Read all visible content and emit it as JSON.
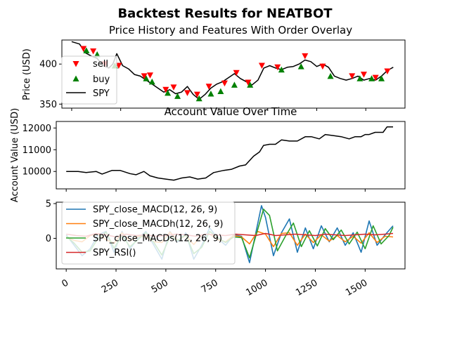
{
  "figure": {
    "suptitle": "Backtest Results for NEATBOT"
  },
  "chart_data": [
    {
      "type": "line",
      "title": "Price History and Features With Order Overlay",
      "ylabel": "Price (USD)",
      "xlabel": "",
      "xlim": [
        -50,
        1700
      ],
      "ylim": [
        345,
        430
      ],
      "yticks": [
        350,
        400
      ],
      "grid": false,
      "legend_position": "upper-left",
      "legend": [
        "sell",
        "buy",
        "SPY"
      ],
      "series": [
        {
          "name": "SPY",
          "color": "#000000",
          "x": [
            0,
            40,
            70,
            100,
            130,
            160,
            190,
            210,
            230,
            260,
            290,
            320,
            350,
            380,
            410,
            440,
            470,
            500,
            530,
            560,
            590,
            620,
            650,
            680,
            710,
            740,
            770,
            800,
            830,
            860,
            890,
            920,
            950,
            980,
            1010,
            1040,
            1070,
            1100,
            1130,
            1160,
            1190,
            1220,
            1250,
            1280,
            1310,
            1340,
            1370,
            1400,
            1430,
            1460,
            1490,
            1520,
            1550,
            1580,
            1610,
            1640
          ],
          "values": [
            428,
            425,
            414,
            410,
            407,
            398,
            395,
            400,
            413,
            398,
            394,
            387,
            385,
            380,
            375,
            370,
            365,
            368,
            363,
            365,
            372,
            362,
            356,
            362,
            370,
            375,
            378,
            383,
            388,
            382,
            378,
            374,
            380,
            395,
            398,
            395,
            393,
            396,
            397,
            400,
            405,
            403,
            397,
            400,
            396,
            385,
            382,
            380,
            382,
            385,
            380,
            382,
            380,
            385,
            392,
            396
          ]
        }
      ],
      "markers": {
        "sell": {
          "color": "#ff0000",
          "x": [
            60,
            110,
            170,
            240,
            370,
            400,
            480,
            520,
            590,
            640,
            700,
            780,
            840,
            900,
            970,
            1050,
            1190,
            1280,
            1430,
            1490,
            1550,
            1610
          ],
          "values": [
            419,
            416,
            400,
            398,
            385,
            386,
            368,
            371,
            364,
            362,
            372,
            376,
            389,
            377,
            398,
            396,
            410,
            397,
            385,
            387,
            383,
            391
          ]
        },
        "buy": {
          "color": "#008000",
          "x": [
            75,
            130,
            220,
            380,
            410,
            490,
            540,
            650,
            710,
            760,
            830,
            910,
            1070,
            1170,
            1320,
            1470,
            1530,
            1580
          ],
          "values": [
            417,
            412,
            398,
            382,
            378,
            364,
            360,
            357,
            363,
            366,
            374,
            374,
            393,
            397,
            385,
            382,
            382,
            382
          ]
        }
      }
    },
    {
      "type": "line",
      "title": "Account Value Over Time",
      "ylabel": "Account Value (USD)",
      "xlabel": "",
      "xlim": [
        -50,
        1700
      ],
      "ylim": [
        9200,
        12300
      ],
      "yticks": [
        10000,
        11000,
        12000
      ],
      "grid": false,
      "series": [
        {
          "name": "",
          "color": "#000000",
          "x": [
            0,
            60,
            100,
            150,
            180,
            230,
            270,
            320,
            350,
            390,
            420,
            460,
            500,
            540,
            580,
            620,
            660,
            700,
            740,
            790,
            830,
            870,
            900,
            940,
            970,
            990,
            1020,
            1050,
            1080,
            1120,
            1160,
            1200,
            1230,
            1270,
            1300,
            1340,
            1380,
            1420,
            1450,
            1480,
            1500,
            1520,
            1550,
            1590,
            1610,
            1640
          ],
          "values": [
            10000,
            10000,
            9950,
            10000,
            9880,
            10050,
            10050,
            9900,
            9850,
            10000,
            9800,
            9700,
            9650,
            9600,
            9700,
            9750,
            9650,
            9700,
            9950,
            10050,
            10100,
            10250,
            10300,
            10700,
            10900,
            11200,
            11250,
            11250,
            11450,
            11400,
            11400,
            11600,
            11600,
            11500,
            11700,
            11650,
            11600,
            11500,
            11600,
            11600,
            11700,
            11700,
            11800,
            11800,
            12050,
            12050
          ]
        }
      ]
    },
    {
      "type": "line",
      "title": "",
      "ylabel": "",
      "xlabel": "",
      "xlim": [
        -50,
        1700
      ],
      "ylim": [
        -4.4,
        5.2
      ],
      "yticks": [
        0,
        5
      ],
      "xticks": [
        0,
        250,
        500,
        750,
        1000,
        1250,
        1500
      ],
      "xtick_labels": [
        "0",
        "250",
        "500",
        "750",
        "1000",
        "1250",
        "1500"
      ],
      "grid": false,
      "legend_position": "upper-left",
      "legend": [
        "SPY_close_MACD(12, 26, 9)",
        "SPY_close_MACDh(12, 26, 9)",
        "SPY_close_MACDs(12, 26, 9)",
        "SPY_RSI()"
      ],
      "series": [
        {
          "name": "SPY_close_MACD(12, 26, 9)",
          "color": "#1f77b4",
          "x": [
            0,
            40,
            80,
            120,
            160,
            200,
            240,
            280,
            320,
            360,
            400,
            440,
            480,
            520,
            560,
            600,
            640,
            680,
            720,
            760,
            800,
            840,
            880,
            920,
            960,
            980,
            1000,
            1040,
            1080,
            1120,
            1160,
            1200,
            1240,
            1280,
            1320,
            1360,
            1400,
            1440,
            1480,
            1520,
            1560,
            1600,
            1640
          ],
          "values": [
            0.5,
            -1.0,
            -2.5,
            -1.5,
            0.5,
            1.0,
            -2.0,
            1.0,
            -1.5,
            0.0,
            1.0,
            -1.0,
            -3.0,
            1.0,
            -0.5,
            0.8,
            -3.0,
            -1.0,
            1.5,
            0.0,
            -1.0,
            0.5,
            0.3,
            -3.5,
            2.0,
            4.7,
            3.0,
            -2.5,
            0.8,
            2.8,
            -2.0,
            1.5,
            -1.5,
            1.8,
            -0.5,
            1.5,
            -1.0,
            0.8,
            -2.0,
            2.5,
            -1.0,
            0.5,
            1.8
          ]
        },
        {
          "name": "SPY_close_MACDh(12, 26, 9)",
          "color": "#ff7f0e",
          "x": [
            0,
            40,
            80,
            120,
            160,
            200,
            240,
            280,
            320,
            360,
            400,
            440,
            480,
            520,
            560,
            600,
            640,
            680,
            720,
            760,
            800,
            840,
            880,
            920,
            960,
            1000,
            1040,
            1080,
            1120,
            1160,
            1200,
            1240,
            1280,
            1320,
            1360,
            1400,
            1440,
            1480,
            1520,
            1560,
            1600,
            1640
          ],
          "values": [
            0.2,
            -0.3,
            -0.5,
            0.4,
            0.6,
            -0.2,
            -0.7,
            0.8,
            -0.4,
            0.3,
            0.2,
            -0.5,
            -0.6,
            0.9,
            -0.3,
            0.4,
            -0.9,
            0.5,
            0.6,
            -0.2,
            -0.5,
            0.4,
            0.2,
            -0.8,
            1.0,
            0.6,
            -1.2,
            0.7,
            0.8,
            -1.0,
            0.6,
            -0.6,
            0.5,
            -0.4,
            0.4,
            -0.5,
            0.3,
            -0.7,
            0.8,
            -0.6,
            0.3,
            0.2
          ]
        },
        {
          "name": "SPY_close_MACDs(12, 26, 9)",
          "color": "#2ca02c",
          "x": [
            0,
            40,
            80,
            120,
            160,
            200,
            240,
            280,
            320,
            360,
            400,
            440,
            480,
            520,
            560,
            600,
            640,
            680,
            720,
            760,
            800,
            840,
            880,
            920,
            960,
            990,
            1020,
            1060,
            1100,
            1140,
            1180,
            1220,
            1260,
            1300,
            1340,
            1380,
            1420,
            1460,
            1500,
            1540,
            1580,
            1620,
            1640
          ],
          "values": [
            0.3,
            -0.7,
            -2.0,
            -1.8,
            0.0,
            0.9,
            -1.4,
            0.4,
            -1.2,
            -0.2,
            0.8,
            -0.6,
            -2.4,
            0.2,
            -0.3,
            0.5,
            -2.2,
            -1.3,
            1.0,
            0.1,
            -0.6,
            0.2,
            0.1,
            -2.8,
            1.2,
            4.2,
            3.3,
            -1.8,
            0.3,
            2.2,
            -1.2,
            1.1,
            -1.1,
            1.4,
            -0.2,
            1.2,
            -0.8,
            0.9,
            -1.5,
            1.8,
            -0.8,
            0.4,
            1.6
          ]
        },
        {
          "name": "SPY_RSI()",
          "color": "#d62728",
          "x": [
            0,
            50,
            100,
            150,
            200,
            250,
            300,
            350,
            400,
            450,
            500,
            550,
            600,
            650,
            700,
            750,
            800,
            850,
            900,
            950,
            1000,
            1050,
            1100,
            1150,
            1200,
            1250,
            1300,
            1350,
            1400,
            1450,
            1500,
            1550,
            1600,
            1640
          ],
          "values": [
            0.6,
            0.4,
            0.3,
            0.7,
            0.5,
            0.2,
            0.6,
            0.4,
            0.5,
            0.3,
            0.4,
            0.6,
            0.5,
            0.3,
            0.6,
            0.5,
            0.4,
            0.6,
            0.5,
            0.4,
            0.7,
            0.4,
            0.5,
            0.6,
            0.5,
            0.4,
            0.6,
            0.5,
            0.4,
            0.5,
            0.6,
            0.5,
            0.6,
            0.7
          ]
        }
      ]
    }
  ]
}
